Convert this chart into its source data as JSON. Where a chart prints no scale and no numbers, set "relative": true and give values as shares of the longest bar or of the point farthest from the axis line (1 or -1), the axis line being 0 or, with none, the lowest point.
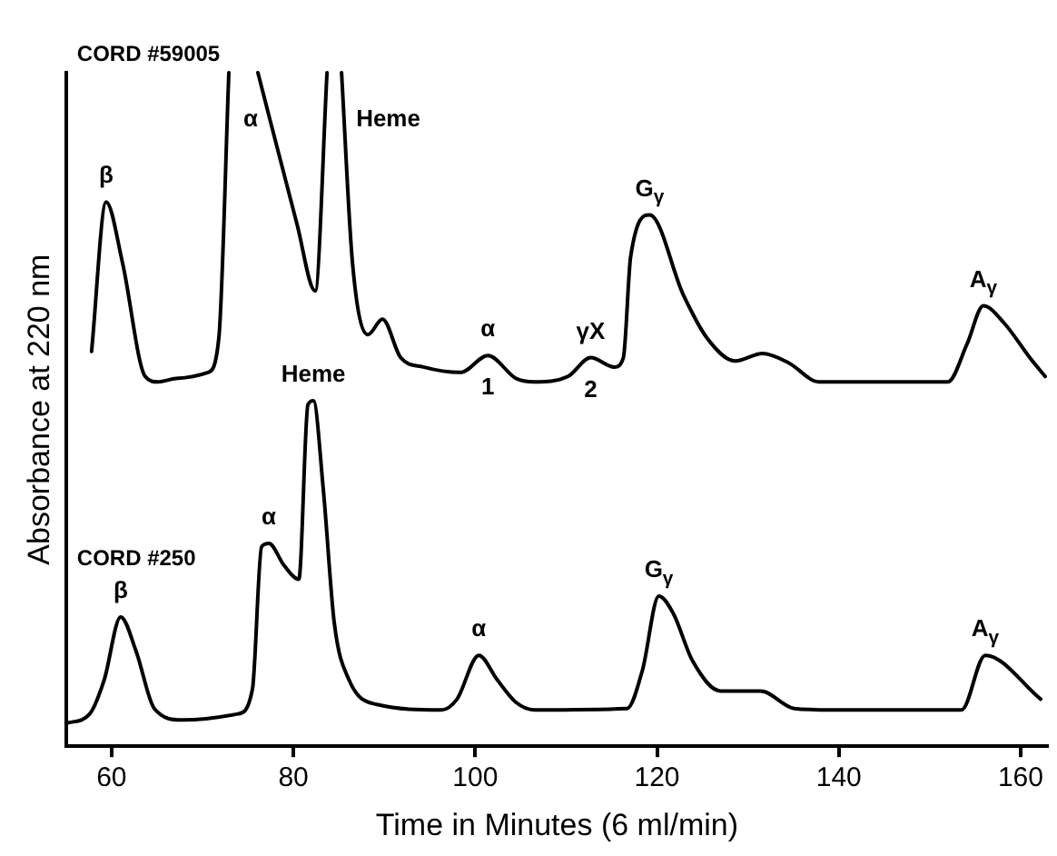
{
  "chart_data": {
    "type": "line",
    "xlabel": "Time in Minutes (6 ml/min)",
    "ylabel": "Absorbance at 220 nm",
    "relative": true,
    "xlim": [
      55,
      163
    ],
    "xticks": [
      60,
      80,
      100,
      120,
      140,
      160
    ],
    "tick_labels": "x",
    "grid": false,
    "legend": false,
    "marker": "none",
    "line_style": "solid",
    "series": [
      {
        "name": "CORD #59005",
        "color": "#000000",
        "x": [
          57.8,
          59.4,
          61.2,
          63.7,
          65.1,
          67.1,
          70.6,
          71.8,
          72.9,
          74.5,
          76.1,
          80.4,
          82.4,
          83.7,
          84.5,
          85.3,
          86.5,
          88.2,
          89.8,
          91.8,
          94.3,
          98.4,
          101.4,
          104.5,
          106.5,
          110.2,
          112.7,
          115.3,
          116.3,
          117.1,
          119.2,
          122.9,
          125.5,
          128.6,
          131.6,
          134.5,
          137.8,
          152,
          154.1,
          155.9,
          158.2,
          161,
          162.7
        ],
        "values": [
          0.586,
          0.808,
          0.718,
          0.549,
          0.541,
          0.546,
          0.555,
          0.606,
          1,
          null,
          1,
          0.775,
          0.676,
          1,
          null,
          1,
          0.718,
          0.611,
          0.634,
          0.577,
          0.563,
          0.555,
          0.58,
          0.546,
          0.541,
          0.549,
          0.577,
          0.563,
          0.577,
          0.727,
          0.789,
          0.67,
          0.606,
          0.572,
          0.583,
          0.569,
          0.541,
          0.541,
          0.597,
          0.654,
          0.628,
          0.577,
          0.549
        ]
      },
      {
        "name": "CORD #250",
        "color": "#000000",
        "x": [
          55,
          57.6,
          59.2,
          61,
          62.7,
          64.7,
          67.8,
          73.9,
          75.5,
          76.5,
          77.3,
          79,
          80.6,
          81.6,
          82.2,
          83.3,
          84.5,
          86.1,
          89.2,
          96.3,
          98,
          100.4,
          102.4,
          104.5,
          106.5,
          116.7,
          118.4,
          120.2,
          121.8,
          123.9,
          127,
          131.4,
          135.1,
          139.2,
          153.5,
          156.1,
          162.2
        ],
        "values": [
          0.034,
          0.048,
          0.099,
          0.192,
          0.141,
          0.056,
          0.039,
          0.048,
          0.085,
          0.296,
          0.301,
          0.268,
          0.248,
          0.507,
          0.513,
          0.38,
          0.183,
          0.099,
          0.062,
          0.054,
          0.07,
          0.135,
          0.099,
          0.065,
          0.054,
          0.056,
          0.113,
          0.223,
          0.197,
          0.127,
          0.082,
          0.082,
          0.056,
          0.054,
          0.054,
          0.135,
          0.07
        ]
      }
    ],
    "annotations": [
      {
        "text": "β",
        "x": 59.4,
        "y": 0.808
      },
      {
        "text": "α",
        "x": 72.9,
        "y": 1
      },
      {
        "text": "Heme",
        "x": 85.3,
        "y": 1
      },
      {
        "text": "α",
        "x": 101.4,
        "y": 0.58
      },
      {
        "text": "1",
        "x": 101.4,
        "y": 0.58
      },
      {
        "text": "γX",
        "x": 112.7,
        "y": 0.577
      },
      {
        "text": "2",
        "x": 112.7,
        "y": 0.577
      },
      {
        "text": "G$_{γ}$",
        "x": 119.2,
        "y": 0.789
      },
      {
        "text": "A$_{γ}$",
        "x": 155.9,
        "y": 0.654
      },
      {
        "text": "β",
        "x": 61,
        "y": 0.192
      },
      {
        "text": "α",
        "x": 77.3,
        "y": 0.301
      },
      {
        "text": "Heme",
        "x": 82.2,
        "y": 0.513
      },
      {
        "text": "α",
        "x": 100.4,
        "y": 0.135
      },
      {
        "text": "G$_{γ}$",
        "x": 120.2,
        "y": 0.223
      },
      {
        "text": "A$_{γ}$",
        "x": 156.1,
        "y": 0.135
      }
    ]
  }
}
